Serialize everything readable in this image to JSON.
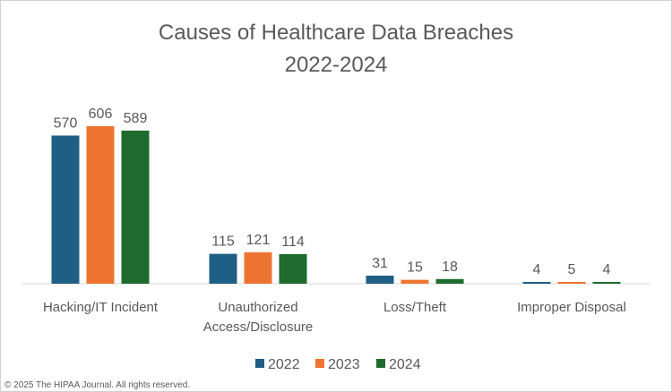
{
  "chart_data": {
    "type": "bar",
    "title": "Causes of Healthcare Data Breaches",
    "subtitle": "2022-2024",
    "categories": [
      [
        "Hacking/IT Incident"
      ],
      [
        "Unauthorized",
        "Access/Disclosure"
      ],
      [
        "Loss/Theft"
      ],
      [
        "Improper Disposal"
      ]
    ],
    "series": [
      {
        "name": "2022",
        "color": "#1f5f85",
        "values": [
          570,
          115,
          31,
          4
        ]
      },
      {
        "name": "2023",
        "color": "#ed7431",
        "values": [
          606,
          121,
          15,
          5
        ]
      },
      {
        "name": "2024",
        "color": "#1e6b2e",
        "values": [
          589,
          114,
          18,
          4
        ]
      }
    ],
    "ylim": [
      0,
      650
    ],
    "grid": false,
    "legend_position": "bottom",
    "data_labels": true
  },
  "footer": "© 2025 The HIPAA Journal. All rights reserved."
}
